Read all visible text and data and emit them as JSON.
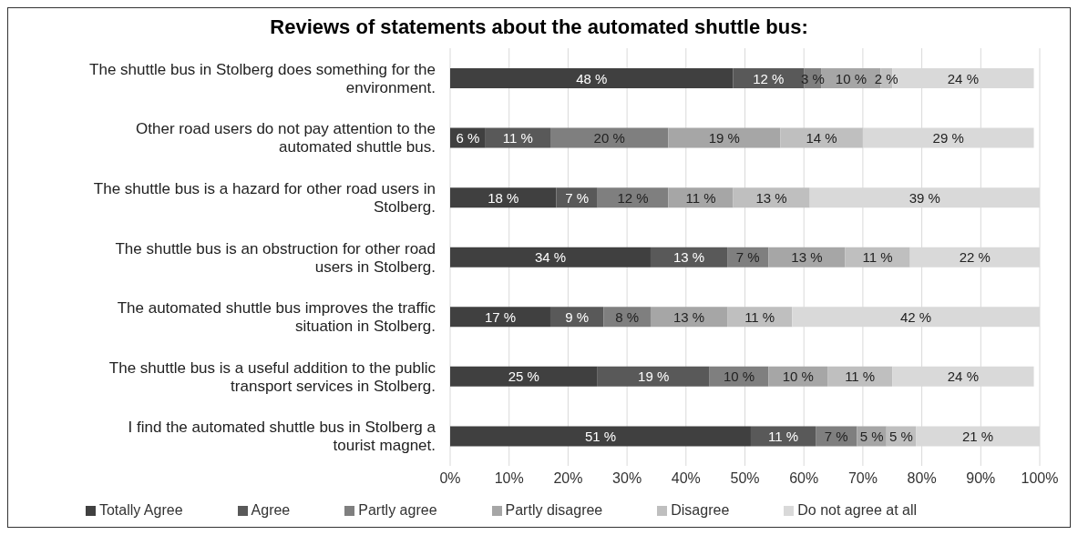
{
  "chart_data": {
    "type": "bar",
    "orientation": "horizontal",
    "stacked": true,
    "title": "Reviews of statements about the automated shuttle bus:",
    "categories": [
      "The shuttle bus in Stolberg does something for the environment.",
      "Other road users do not pay attention to the automated shuttle bus.",
      "The shuttle bus is a hazard for other road users in Stolberg.",
      "The shuttle bus is an obstruction for other road users in Stolberg.",
      "The automated shuttle bus improves the traffic situation in Stolberg.",
      "The shuttle bus is a useful addition to the public transport services in Stolberg.",
      "I find the automated shuttle bus in Stolberg a tourist magnet."
    ],
    "series": [
      {
        "name": "Totally Agree",
        "color": "#404040",
        "values": [
          48,
          6,
          18,
          34,
          17,
          25,
          51
        ],
        "value_labels": [
          "48 %",
          "6 %",
          "18 %",
          "34 %",
          "17 %",
          "25 %",
          "51 %"
        ]
      },
      {
        "name": "Agree",
        "color": "#595959",
        "values": [
          12,
          11,
          7,
          13,
          9,
          19,
          11
        ],
        "value_labels": [
          "12 %",
          "11 %",
          "7 %",
          "13 %",
          "9 %",
          "19 %",
          "11 %"
        ]
      },
      {
        "name": "Partly agree",
        "color": "#7f7f7f",
        "values": [
          3,
          20,
          12,
          7,
          8,
          10,
          7
        ],
        "value_labels": [
          "3 %",
          "20 %",
          "12 %",
          "7 %",
          "8 %",
          "10 %",
          "7 %"
        ]
      },
      {
        "name": "Partly disagree",
        "color": "#a6a6a6",
        "values": [
          10,
          19,
          11,
          13,
          13,
          10,
          5
        ],
        "value_labels": [
          "10 %",
          "19 %",
          "11 %",
          "13 %",
          "13 %",
          "10 %",
          "5 %"
        ]
      },
      {
        "name": "Disagree",
        "color": "#bfbfbf",
        "values": [
          2,
          14,
          13,
          11,
          11,
          11,
          5
        ],
        "value_labels": [
          "2 %",
          "14 %",
          "13 %",
          "11 %",
          "11 %",
          "11 %",
          "5 %"
        ]
      },
      {
        "name": "Do not agree at all",
        "color": "#d9d9d9",
        "values": [
          24,
          29,
          39,
          22,
          42,
          24,
          21
        ],
        "value_labels": [
          "24 %",
          "29 %",
          "39 %",
          "22 %",
          "42 %",
          "24 %",
          "21 %"
        ]
      }
    ],
    "xlim": [
      0,
      100
    ],
    "xticks": [
      {
        "value": 0,
        "label": "0%"
      },
      {
        "value": 10,
        "label": "10%"
      },
      {
        "value": 20,
        "label": "20%"
      },
      {
        "value": 30,
        "label": "30%"
      },
      {
        "value": 40,
        "label": "40%"
      },
      {
        "value": 50,
        "label": "50%"
      },
      {
        "value": 60,
        "label": "60%"
      },
      {
        "value": 70,
        "label": "70%"
      },
      {
        "value": 80,
        "label": "80%"
      },
      {
        "value": 90,
        "label": "90%"
      },
      {
        "value": 100,
        "label": "100%"
      }
    ],
    "grid": "x",
    "legend": "bottom"
  }
}
